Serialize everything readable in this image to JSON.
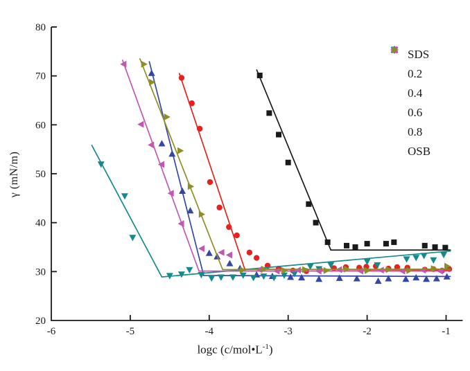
{
  "axes": {
    "x": {
      "label_main": "logc (c/mol•L",
      "label_sup": "-1",
      "label_close": ")",
      "tick_labels": [
        "-6",
        "-5",
        "-4",
        "-3",
        "-2",
        "-1"
      ],
      "tick_values": [
        -6,
        -5,
        -4,
        -3,
        -2,
        -1
      ],
      "range": [
        -6,
        -0.79
      ]
    },
    "y": {
      "label": "γ (mN/m)",
      "tick_labels": [
        "20",
        "30",
        "40",
        "50",
        "60",
        "70",
        "80"
      ],
      "tick_values": [
        20,
        30,
        40,
        50,
        60,
        70,
        80
      ],
      "range": [
        20,
        80
      ]
    }
  },
  "chart_data": {
    "type": "scatter",
    "title": "",
    "xlabel": "logc (c/mol•L-1)",
    "ylabel": "γ (mN/m)",
    "xlim": [
      -6,
      -0.79
    ],
    "ylim": [
      20,
      80
    ],
    "grid": false,
    "legend_position": "top-right",
    "axis_color": "#1a1a1a",
    "series": [
      {
        "name": "SDS",
        "color": "#1a1a1a",
        "marker": "square",
        "points": [
          [
            -3.36,
            70.1
          ],
          [
            -3.24,
            62.4
          ],
          [
            -3.12,
            58.0
          ],
          [
            -3.0,
            52.3
          ],
          [
            -2.74,
            43.8
          ],
          [
            -2.65,
            40.0
          ],
          [
            -2.5,
            36.0
          ],
          [
            -2.26,
            35.3
          ],
          [
            -2.15,
            35.0
          ],
          [
            -2.0,
            35.7
          ],
          [
            -1.76,
            35.7
          ],
          [
            -1.66,
            36.0
          ],
          [
            -1.27,
            35.3
          ],
          [
            -1.14,
            35.0
          ],
          [
            -1.01,
            34.9
          ]
        ],
        "fit_line": [
          [
            -3.4,
            71.3
          ],
          [
            -2.46,
            34.4
          ],
          [
            -0.94,
            34.4
          ]
        ]
      },
      {
        "name": "0.2",
        "color": "#e5231e",
        "marker": "circle",
        "points": [
          [
            -4.35,
            69.6
          ],
          [
            -4.22,
            64.4
          ],
          [
            -4.12,
            59.2
          ],
          [
            -3.99,
            48.3
          ],
          [
            -3.87,
            43.1
          ],
          [
            -3.75,
            39.1
          ],
          [
            -3.65,
            37.4
          ],
          [
            -3.49,
            33.9
          ],
          [
            -3.4,
            32.8
          ],
          [
            -3.26,
            31.2
          ],
          [
            -3.12,
            30.6
          ],
          [
            -2.94,
            30.2
          ],
          [
            -2.77,
            30.1
          ],
          [
            -2.6,
            30.4
          ],
          [
            -2.42,
            30.7
          ],
          [
            -2.27,
            30.9
          ],
          [
            -2.1,
            30.8
          ],
          [
            -2.01,
            31.0
          ],
          [
            -1.89,
            31.1
          ],
          [
            -1.73,
            30.6
          ],
          [
            -1.62,
            30.9
          ],
          [
            -1.49,
            30.8
          ],
          [
            -1.27,
            30.4
          ],
          [
            -1.16,
            30.5
          ],
          [
            -1.05,
            30.2
          ],
          [
            -0.96,
            30.5
          ]
        ],
        "fit_line": [
          [
            -4.38,
            70.6
          ],
          [
            -3.55,
            30.5
          ],
          [
            -0.94,
            30.3
          ]
        ]
      },
      {
        "name": "0.4",
        "color": "#3547a5",
        "marker": "triangle-up",
        "points": [
          [
            -4.73,
            70.5
          ],
          [
            -4.6,
            56.1
          ],
          [
            -4.47,
            54.0
          ],
          [
            -4.34,
            46.4
          ],
          [
            -4.24,
            42.4
          ],
          [
            -4.0,
            33.7
          ],
          [
            -3.9,
            33.0
          ],
          [
            -3.74,
            31.6
          ],
          [
            -3.61,
            30.6
          ],
          [
            -3.4,
            29.3
          ],
          [
            -3.2,
            29.0
          ],
          [
            -2.97,
            28.8
          ],
          [
            -2.83,
            28.7
          ],
          [
            -2.61,
            28.4
          ],
          [
            -2.35,
            28.6
          ],
          [
            -2.13,
            28.5
          ],
          [
            -1.86,
            28.0
          ],
          [
            -1.73,
            28.5
          ],
          [
            -1.51,
            28.4
          ],
          [
            -1.38,
            28.7
          ],
          [
            -1.25,
            28.4
          ],
          [
            -1.12,
            28.5
          ],
          [
            -0.99,
            28.9
          ]
        ],
        "fit_line": [
          [
            -4.76,
            73.0
          ],
          [
            -4.07,
            29.2
          ],
          [
            -0.94,
            29.0
          ]
        ]
      },
      {
        "name": "0.6",
        "color": "#15898c",
        "marker": "triangle-down",
        "points": [
          [
            -5.37,
            52.0
          ],
          [
            -5.07,
            45.5
          ],
          [
            -4.97,
            37.0
          ],
          [
            -4.5,
            29.2
          ],
          [
            -4.35,
            29.5
          ],
          [
            -4.25,
            30.4
          ],
          [
            -4.1,
            29.4
          ],
          [
            -3.97,
            28.7
          ],
          [
            -3.85,
            28.9
          ],
          [
            -3.7,
            28.9
          ],
          [
            -3.57,
            29.3
          ],
          [
            -3.44,
            28.8
          ],
          [
            -3.31,
            29.1
          ],
          [
            -3.18,
            28.8
          ],
          [
            -3.05,
            29.3
          ],
          [
            -2.92,
            29.6
          ],
          [
            -2.72,
            31.1
          ],
          [
            -2.61,
            30.6
          ],
          [
            -2.46,
            31.4
          ],
          [
            -2.0,
            32.1
          ],
          [
            -1.87,
            31.4
          ],
          [
            -1.5,
            32.6
          ],
          [
            -1.38,
            32.9
          ],
          [
            -1.28,
            33.3
          ],
          [
            -1.16,
            32.4
          ],
          [
            -1.03,
            33.5
          ]
        ],
        "fit_line": [
          [
            -5.49,
            55.9
          ],
          [
            -4.6,
            28.9
          ],
          [
            -0.94,
            34.2
          ]
        ]
      },
      {
        "name": "0.8",
        "color": "#c257b2",
        "marker": "triangle-left",
        "points": [
          [
            -5.08,
            72.4
          ],
          [
            -4.86,
            60.1
          ],
          [
            -4.73,
            55.9
          ],
          [
            -4.6,
            51.9
          ],
          [
            -4.48,
            46.0
          ],
          [
            -4.35,
            39.8
          ],
          [
            -4.09,
            34.7
          ],
          [
            -3.84,
            33.9
          ],
          [
            -3.74,
            33.4
          ],
          [
            -3.36,
            30.4
          ],
          [
            -3.14,
            30.1
          ],
          [
            -2.87,
            30.3
          ],
          [
            -2.61,
            30.1
          ],
          [
            -2.35,
            30.4
          ],
          [
            -2.08,
            30.1
          ],
          [
            -1.82,
            30.3
          ],
          [
            -1.55,
            30.1
          ],
          [
            -1.29,
            30.3
          ],
          [
            -1.07,
            30.1
          ]
        ],
        "fit_line": [
          [
            -5.1,
            73.3
          ],
          [
            -4.13,
            30.1
          ],
          [
            -0.94,
            30.1
          ]
        ]
      },
      {
        "name": "OSB",
        "color": "#8e8e28",
        "marker": "triangle-right",
        "points": [
          [
            -4.83,
            72.4
          ],
          [
            -4.73,
            68.7
          ],
          [
            -4.54,
            61.6
          ],
          [
            -4.37,
            54.7
          ],
          [
            -4.24,
            47.4
          ],
          [
            -4.1,
            41.7
          ],
          [
            -3.58,
            30.3
          ],
          [
            -3.31,
            30.5
          ],
          [
            -3.05,
            30.2
          ],
          [
            -2.79,
            30.4
          ],
          [
            -2.52,
            30.2
          ],
          [
            -2.26,
            30.5
          ],
          [
            -2.0,
            30.2
          ],
          [
            -1.73,
            30.4
          ],
          [
            -1.47,
            30.2
          ],
          [
            -1.16,
            30.6
          ],
          [
            -0.99,
            31.1
          ]
        ],
        "fit_line": [
          [
            -4.88,
            73.6
          ],
          [
            -3.83,
            30.4
          ],
          [
            -0.94,
            30.5
          ]
        ]
      }
    ]
  }
}
